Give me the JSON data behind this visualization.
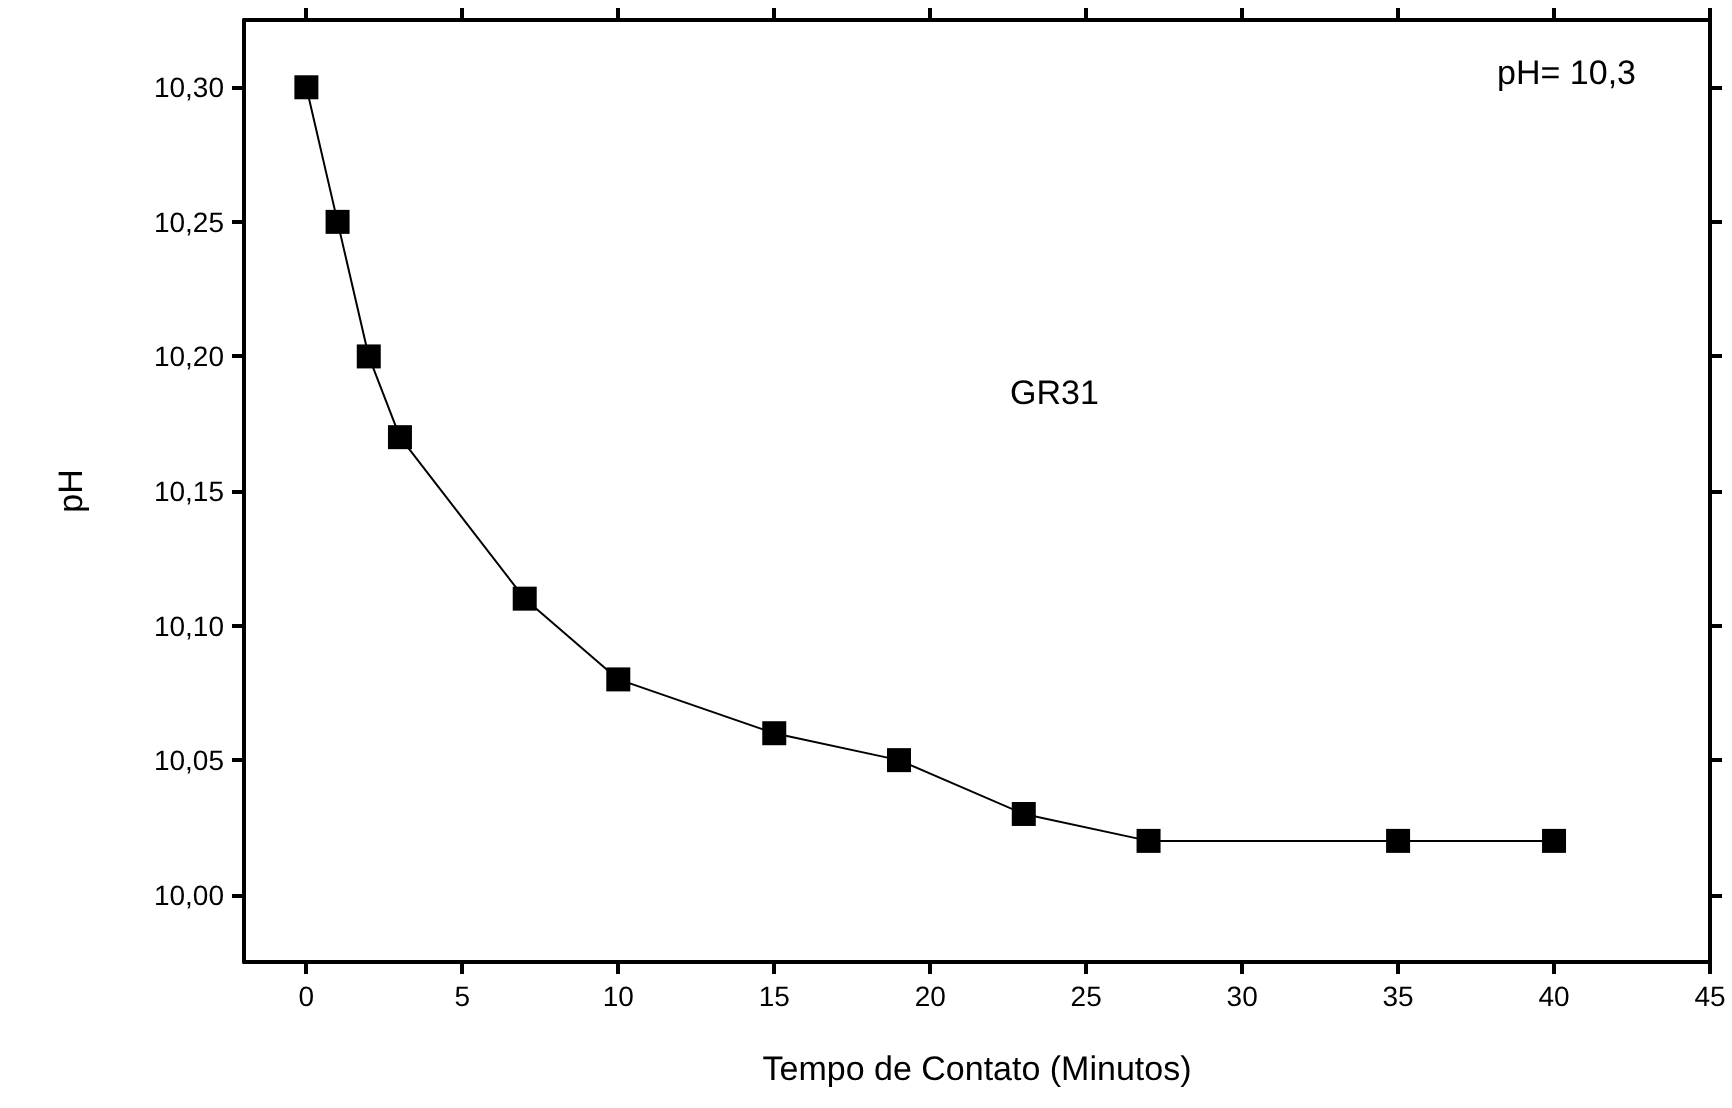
{
  "chart_data": {
    "type": "line",
    "xlabel": "Tempo de Contato (Minutos)",
    "ylabel": "pH",
    "annotations": [
      "pH= 10,3",
      "GR31"
    ],
    "x": [
      0,
      1,
      2,
      3,
      7,
      10,
      15,
      19,
      23,
      27,
      35,
      40
    ],
    "series": [
      {
        "color": "#000000",
        "values": [
          10.3,
          10.25,
          10.2,
          10.17,
          10.11,
          10.08,
          10.06,
          10.05,
          10.03,
          10.02,
          10.02,
          10.02
        ]
      }
    ],
    "xlim": [
      -2,
      45
    ],
    "xticks": [
      0,
      5,
      10,
      15,
      20,
      25,
      30,
      35,
      40,
      45
    ],
    "ylim": [
      9.975,
      10.325
    ],
    "yticks": [
      {
        "value": 10.0,
        "label": "10,00"
      },
      {
        "value": 10.05,
        "label": "10,05"
      },
      {
        "value": 10.1,
        "label": "10,10"
      },
      {
        "value": 10.15,
        "label": "10,15"
      },
      {
        "value": 10.2,
        "label": "10,20"
      },
      {
        "value": 10.25,
        "label": "10,25"
      },
      {
        "value": 10.3,
        "label": "10,30"
      }
    ],
    "grid": false,
    "marker": "square",
    "line_style": "solid"
  }
}
